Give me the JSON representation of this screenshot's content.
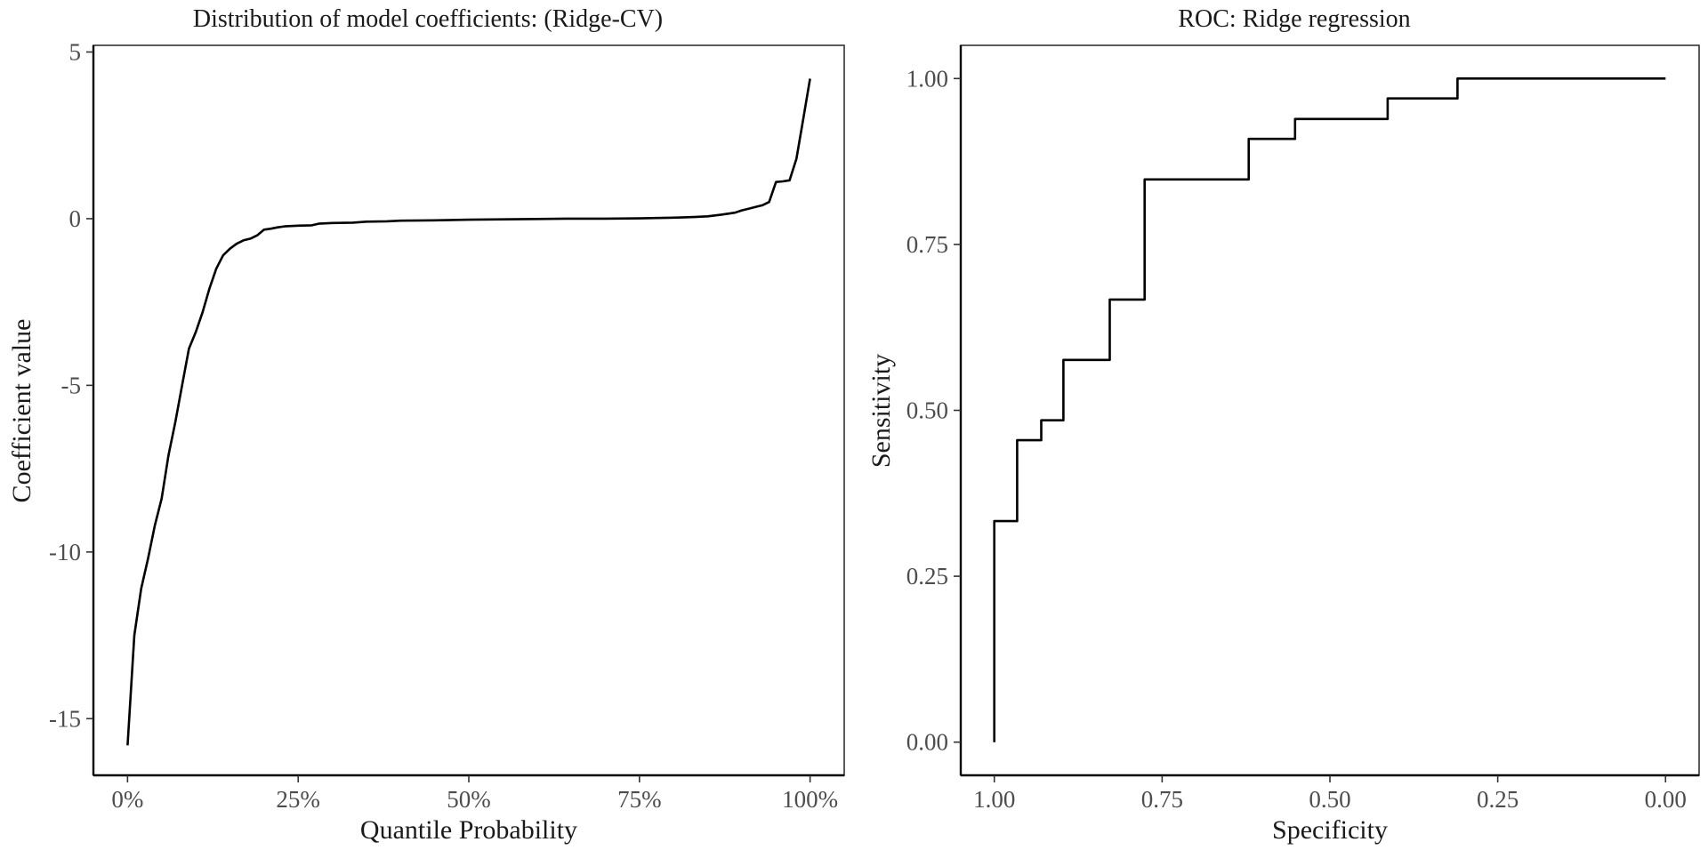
{
  "chart_data": [
    {
      "type": "line",
      "title": "Distribution of model coefficients: (Ridge-CV)",
      "xlabel": "Quantile Probability",
      "ylabel": "Coefficient value",
      "xlim": [
        -0.05,
        1.05
      ],
      "ylim": [
        -16.7,
        5.2
      ],
      "x_ticks": [
        {
          "value": 0.0,
          "label": "0%"
        },
        {
          "value": 0.25,
          "label": "25%"
        },
        {
          "value": 0.5,
          "label": "50%"
        },
        {
          "value": 0.75,
          "label": "75%"
        },
        {
          "value": 1.0,
          "label": "100%"
        }
      ],
      "y_ticks": [
        {
          "value": 5,
          "label": "5"
        },
        {
          "value": 0,
          "label": "0"
        },
        {
          "value": -5,
          "label": "-5"
        },
        {
          "value": -10,
          "label": "-10"
        },
        {
          "value": -15,
          "label": "-15"
        }
      ],
      "grid": false,
      "series": [
        {
          "x": [
            0,
            0.01,
            0.02,
            0.03,
            0.04,
            0.05,
            0.06,
            0.07,
            0.08,
            0.09,
            0.1,
            0.11,
            0.12,
            0.13,
            0.14,
            0.15,
            0.16,
            0.17,
            0.18,
            0.19,
            0.2,
            0.21,
            0.22,
            0.23,
            0.25,
            0.27,
            0.28,
            0.3,
            0.33,
            0.35,
            0.38,
            0.4,
            0.45,
            0.5,
            0.55,
            0.6,
            0.65,
            0.7,
            0.75,
            0.8,
            0.83,
            0.85,
            0.87,
            0.89,
            0.9,
            0.91,
            0.92,
            0.93,
            0.94,
            0.95,
            0.96,
            0.97,
            0.98,
            0.99,
            1.0
          ],
          "y": [
            -15.8,
            -12.5,
            -11.1,
            -10.2,
            -9.2,
            -8.4,
            -7.1,
            -6.1,
            -5.0,
            -3.9,
            -3.4,
            -2.8,
            -2.1,
            -1.5,
            -1.1,
            -0.9,
            -0.75,
            -0.65,
            -0.6,
            -0.5,
            -0.33,
            -0.3,
            -0.26,
            -0.23,
            -0.21,
            -0.2,
            -0.15,
            -0.13,
            -0.12,
            -0.09,
            -0.08,
            -0.06,
            -0.05,
            -0.03,
            -0.02,
            -0.01,
            0.0,
            0.0,
            0.01,
            0.03,
            0.05,
            0.07,
            0.12,
            0.18,
            0.25,
            0.3,
            0.35,
            0.4,
            0.5,
            1.1,
            1.12,
            1.15,
            1.8,
            3.0,
            4.2
          ]
        }
      ]
    },
    {
      "type": "line",
      "title": "ROC: Ridge regression",
      "xlabel": "Specificity",
      "ylabel": "Sensitivity",
      "x_reversed": true,
      "xlim": [
        1.05,
        -0.05
      ],
      "ylim": [
        -0.05,
        1.05
      ],
      "x_ticks": [
        {
          "value": 1.0,
          "label": "1.00"
        },
        {
          "value": 0.75,
          "label": "0.75"
        },
        {
          "value": 0.5,
          "label": "0.50"
        },
        {
          "value": 0.25,
          "label": "0.25"
        },
        {
          "value": 0.0,
          "label": "0.00"
        }
      ],
      "y_ticks": [
        {
          "value": 0.0,
          "label": "0.00"
        },
        {
          "value": 0.25,
          "label": "0.25"
        },
        {
          "value": 0.5,
          "label": "0.50"
        },
        {
          "value": 0.75,
          "label": "0.75"
        },
        {
          "value": 1.0,
          "label": "1.00"
        }
      ],
      "grid": false,
      "series": [
        {
          "x": [
            1.0,
            1.0,
            0.966,
            0.966,
            0.93,
            0.93,
            0.897,
            0.897,
            0.828,
            0.828,
            0.776,
            0.776,
            0.621,
            0.621,
            0.552,
            0.552,
            0.414,
            0.414,
            0.31,
            0.31,
            0.0
          ],
          "y": [
            0.0,
            0.333,
            0.333,
            0.455,
            0.455,
            0.485,
            0.485,
            0.576,
            0.576,
            0.667,
            0.667,
            0.848,
            0.848,
            0.909,
            0.909,
            0.939,
            0.939,
            0.97,
            0.97,
            1.0,
            1.0
          ]
        }
      ]
    }
  ]
}
